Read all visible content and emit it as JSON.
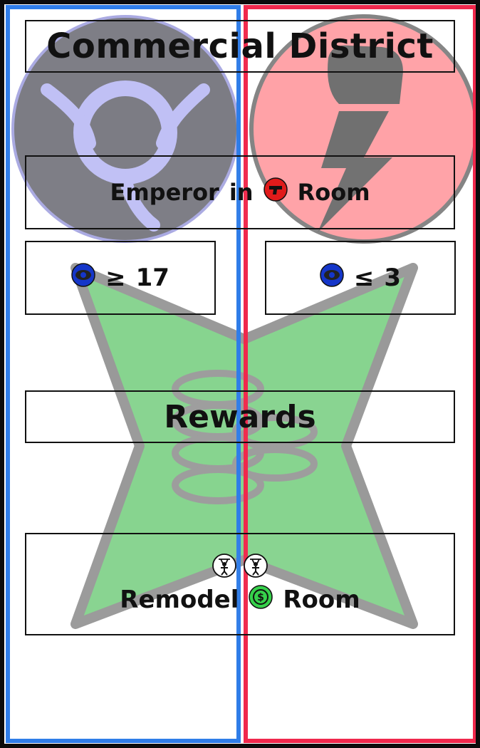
{
  "card": {
    "title": "Commercial  District",
    "condition": {
      "role": "Emperor",
      "word": "in",
      "room_icon": "gun-icon",
      "room_label": "Room"
    },
    "thresholds": [
      {
        "icon": "eye-icon",
        "operator": "≥",
        "value": "17"
      },
      {
        "icon": "eye-icon",
        "operator": "≤",
        "value": "3"
      }
    ],
    "rewards_heading": "Rewards",
    "reward": {
      "icons": [
        "puppet-icon",
        "puppet-icon"
      ],
      "action": "Remodel",
      "room_icon": "money-icon",
      "room_label": "Room"
    }
  },
  "colors": {
    "left_faction": "#2f7de8",
    "right_faction": "#f0284c",
    "center_emblem": "#5fc66a",
    "eye_token": "#1536c9",
    "gun_token": "#e01b1b",
    "money_token": "#36d14b"
  }
}
